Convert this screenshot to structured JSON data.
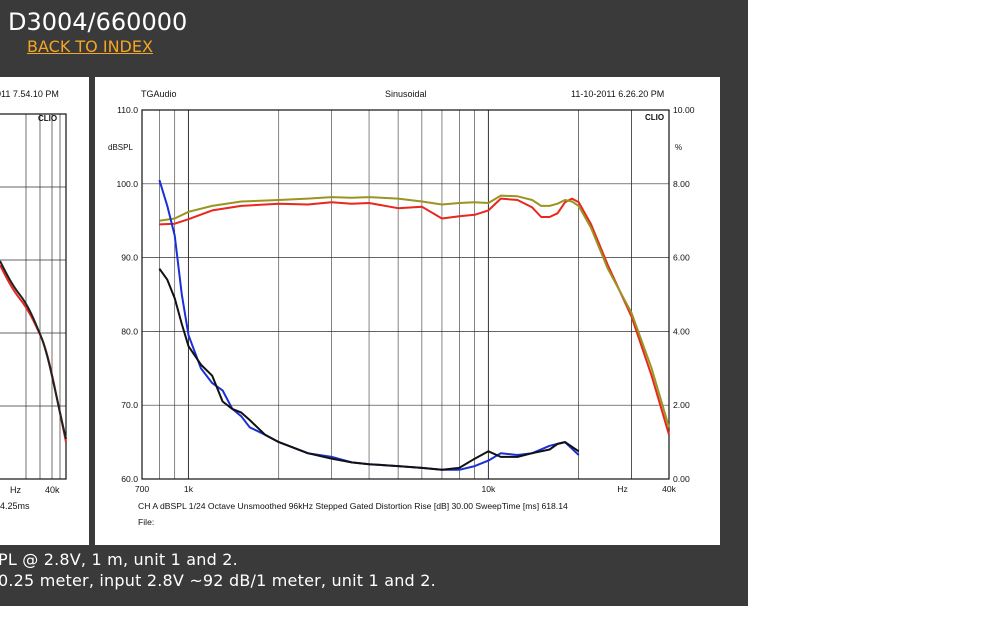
{
  "page": {
    "title": "D3004/660000",
    "back_link": "BACK TO INDEX",
    "caption_1": "PL @ 2.8V, 1 m, unit 1 and 2.",
    "caption_2": "0.25 meter, input 2.8V ~92 dB/1 meter, unit 1 and 2."
  },
  "left_chart": {
    "header_timestamp": "011 7.54.10 PM",
    "logo": "CLIO",
    "xtick_hz": "Hz",
    "xtick_40k": "40k",
    "footer": "4.25ms"
  },
  "chart_data": {
    "type": "line",
    "header_left": "TGAudio",
    "header_center": "Sinusoidal",
    "header_right": "11-10-2011 6.26.20 PM",
    "logo": "CLIO",
    "y_left_unit": "dBSPL",
    "y_right_unit": "%",
    "x_scale": "log",
    "xlim": [
      700,
      40000
    ],
    "ylim": [
      60,
      110
    ],
    "y2lim": [
      0,
      10
    ],
    "x_ticks": [
      "700",
      "1k",
      "10k",
      "Hz",
      "40k"
    ],
    "y_ticks": [
      "60.0",
      "70.0",
      "80.0",
      "90.0",
      "100.0",
      "110.0"
    ],
    "y2_ticks": [
      "0.00",
      "2.00",
      "4.00",
      "6.00",
      "8.00",
      "10.00"
    ],
    "footer_line1": [
      "CH A",
      "dBSPL",
      "1/24 Octave",
      "Unsmoothed",
      "96kHz",
      "Stepped",
      "Gated",
      "Distortion Rise [dB] 30.00",
      "SweepTime [ms] 618.14"
    ],
    "footer_line2": "File:",
    "series": [
      {
        "axis": "left",
        "color": "#e8271e",
        "x": [
          800,
          900,
          1000,
          1200,
          1500,
          2000,
          2500,
          3000,
          3500,
          4000,
          5000,
          6000,
          7000,
          8000,
          9000,
          10000,
          11000,
          12500,
          14000,
          15000,
          16000,
          17000,
          18000,
          19000,
          20000,
          22000,
          25000,
          30000,
          35000,
          40000
        ],
        "y": [
          94.5,
          94.6,
          95.2,
          96.4,
          97.0,
          97.3,
          97.2,
          97.5,
          97.3,
          97.4,
          96.7,
          96.9,
          95.3,
          95.6,
          95.8,
          96.4,
          98.0,
          97.8,
          96.8,
          95.5,
          95.5,
          96.0,
          97.5,
          98.0,
          97.5,
          94.5,
          89.0,
          82.0,
          74.0,
          66.0
        ]
      },
      {
        "axis": "left",
        "color": "#9a9420",
        "x": [
          800,
          900,
          1000,
          1200,
          1500,
          2000,
          2500,
          3000,
          3500,
          4000,
          5000,
          6000,
          7000,
          8000,
          9000,
          10000,
          11000,
          12500,
          14000,
          15000,
          16000,
          17000,
          18000,
          19000,
          20000,
          22000,
          25000,
          30000,
          35000,
          40000
        ],
        "y": [
          95.0,
          95.3,
          96.2,
          97.0,
          97.6,
          97.8,
          98.0,
          98.2,
          98.1,
          98.2,
          98.0,
          97.6,
          97.2,
          97.4,
          97.5,
          97.4,
          98.4,
          98.3,
          97.8,
          97.0,
          97.0,
          97.3,
          97.8,
          97.6,
          97.0,
          94.0,
          88.5,
          82.5,
          75.0,
          67.0
        ]
      },
      {
        "axis": "right",
        "color": "#1a2fd6",
        "x": [
          800,
          850,
          900,
          950,
          1000,
          1100,
          1200,
          1300,
          1400,
          1500,
          1600,
          1800,
          2000,
          2500,
          3000,
          3500,
          4000,
          5000,
          6000,
          7000,
          8000,
          9000,
          10000,
          11000,
          12500,
          14000,
          16000,
          17000,
          18000,
          20000
        ],
        "y": [
          8.1,
          7.4,
          6.6,
          5.0,
          3.9,
          3.0,
          2.6,
          2.4,
          1.9,
          1.7,
          1.4,
          1.2,
          1.0,
          0.7,
          0.6,
          0.45,
          0.4,
          0.35,
          0.3,
          0.25,
          0.25,
          0.35,
          0.5,
          0.7,
          0.65,
          0.7,
          0.9,
          0.95,
          1.0,
          0.65
        ]
      },
      {
        "axis": "right",
        "color": "#111111",
        "x": [
          800,
          850,
          900,
          950,
          1000,
          1100,
          1200,
          1300,
          1400,
          1500,
          1600,
          1800,
          2000,
          2500,
          3000,
          3500,
          4000,
          5000,
          6000,
          7000,
          8000,
          9000,
          10000,
          11000,
          12500,
          14000,
          16000,
          17000,
          18000,
          20000
        ],
        "y": [
          5.7,
          5.4,
          4.9,
          4.2,
          3.6,
          3.1,
          2.8,
          2.1,
          1.9,
          1.8,
          1.6,
          1.2,
          1.0,
          0.7,
          0.55,
          0.45,
          0.4,
          0.35,
          0.3,
          0.25,
          0.3,
          0.55,
          0.75,
          0.6,
          0.6,
          0.7,
          0.8,
          0.95,
          1.0,
          0.75
        ]
      }
    ]
  }
}
